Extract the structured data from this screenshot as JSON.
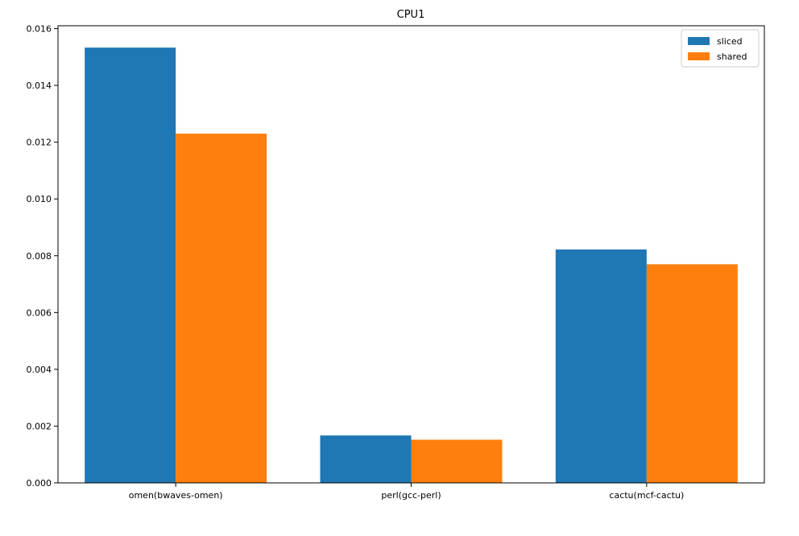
{
  "chart_data": {
    "type": "bar",
    "title": "CPU1",
    "xlabel": "",
    "ylabel": "",
    "categories": [
      "omen(bwaves-omen)",
      "perl(gcc-perl)",
      "cactu(mcf-cactu)"
    ],
    "series": [
      {
        "name": "sliced",
        "color": "#1f77b4",
        "values": [
          0.01533,
          0.00167,
          0.00822
        ]
      },
      {
        "name": "shared",
        "color": "#ff7f0e",
        "values": [
          0.0123,
          0.00152,
          0.0077
        ]
      }
    ],
    "ylim": [
      0,
      0.0161
    ],
    "yticks": [
      0.0,
      0.002,
      0.004,
      0.006,
      0.008,
      0.01,
      0.012,
      0.014,
      0.016
    ],
    "ytick_labels": [
      "0.000",
      "0.002",
      "0.004",
      "0.006",
      "0.008",
      "0.010",
      "0.012",
      "0.014",
      "0.016"
    ],
    "grid": false,
    "legend": "top-right"
  }
}
